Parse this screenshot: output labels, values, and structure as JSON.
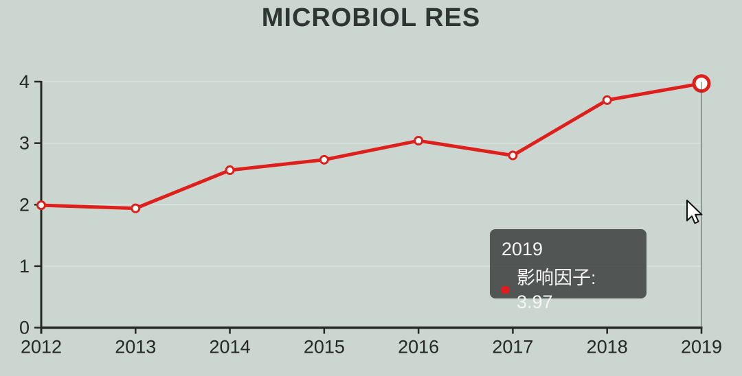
{
  "page": {
    "background": "#ccd6d0"
  },
  "title": {
    "text": "MICROBIOL RES",
    "color": "#2d3632"
  },
  "chart_data": {
    "type": "line",
    "title": "MICROBIOL RES",
    "x": [
      "2012",
      "2013",
      "2014",
      "2015",
      "2016",
      "2017",
      "2018",
      "2019"
    ],
    "series": [
      {
        "name": "影响因子",
        "color": "#de201d",
        "values": [
          1.99,
          1.94,
          2.56,
          2.73,
          3.04,
          2.8,
          3.7,
          3.97
        ]
      }
    ],
    "xlabel": "",
    "ylabel": "",
    "ylim": [
      0,
      4
    ],
    "yticks": [
      0,
      1,
      2,
      3,
      4
    ],
    "grid": true,
    "legend": "none",
    "hovered_point": {
      "x": "2019",
      "value": 3.97
    }
  },
  "tooltip": {
    "title": "2019",
    "entry": "影响因子: 3.97",
    "marker_color": "#e01d1d",
    "background": "rgba(50,53,51,0.8)"
  },
  "style": {
    "line_color": "#de201d",
    "marker_fill": "#ffffff",
    "axis_color": "#242926",
    "grid_color": "#dae4de",
    "crosshair_color": "rgba(70,80,76,0.6)",
    "label_color": "#242926"
  }
}
